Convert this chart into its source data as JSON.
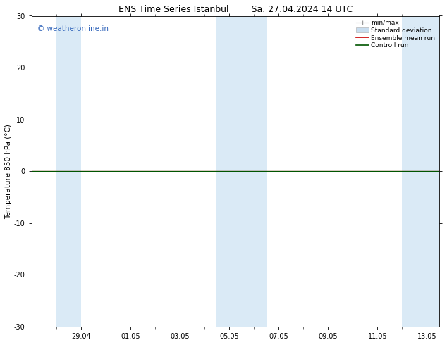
{
  "title_left": "ENS Time Series Istanbul",
  "title_right": "Sa. 27.04.2024 14 UTC",
  "ylabel": "Temperature 850 hPa (°C)",
  "ylim": [
    -30,
    30
  ],
  "yticks": [
    -30,
    -20,
    -10,
    0,
    10,
    20,
    30
  ],
  "xtick_labels": [
    "29.04",
    "01.05",
    "03.05",
    "05.05",
    "07.05",
    "09.05",
    "11.05",
    "13.05"
  ],
  "xtick_positions": [
    2,
    4,
    6,
    8,
    10,
    12,
    14,
    16
  ],
  "total_days": 16.5,
  "watermark": "© weatheronline.in",
  "watermark_color": "#3366bb",
  "bg_color": "#ffffff",
  "plot_bg_color": "#ffffff",
  "shaded_band_color": "#daeaf6",
  "vertical_band_ranges": [
    [
      1.0,
      2.0
    ],
    [
      7.5,
      9.5
    ],
    [
      15.0,
      16.5
    ]
  ],
  "ensemble_mean_y": 0.0,
  "control_run_y": 0.0,
  "ensemble_mean_color": "#cc0000",
  "control_run_color": "#005500",
  "minmax_color": "#999999",
  "stddev_color": "#c8ddef",
  "legend_labels": [
    "min/max",
    "Standard deviation",
    "Ensemble mean run",
    "Controll run"
  ],
  "title_fontsize": 9,
  "axis_fontsize": 7.5,
  "tick_fontsize": 7,
  "watermark_fontsize": 7.5,
  "legend_fontsize": 6.5
}
